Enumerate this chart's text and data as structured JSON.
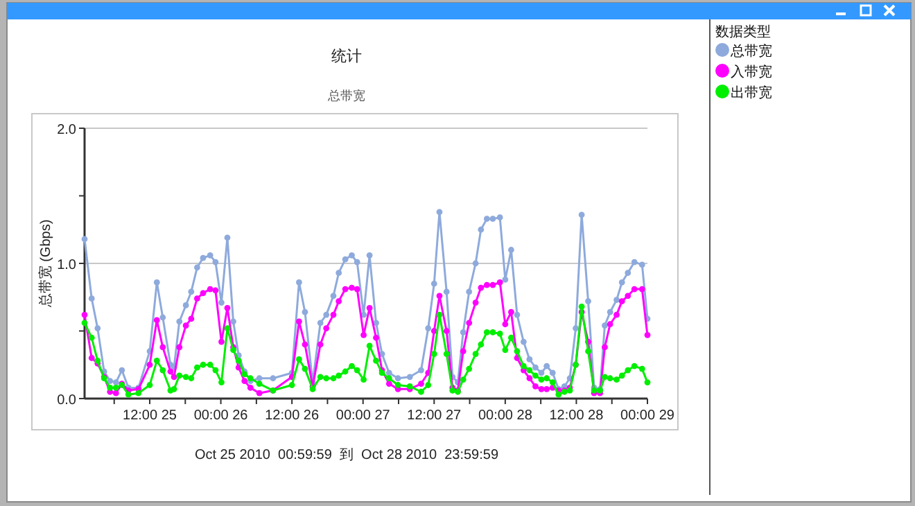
{
  "chart_data": {
    "type": "line",
    "title": "统计",
    "subtitle": "总带宽",
    "ylabel": "总带宽 (Gbps)",
    "xlabel": "Oct 25 2010  00:59:59  到  Oct 28 2010  23:59:59",
    "legend_title": "数据类型",
    "legend": "right",
    "marker": "circle",
    "grid": "y",
    "x": [
      "2010-10-25T01:00",
      "2010-10-25T02:12",
      "2010-10-25T03:12",
      "2010-10-25T04:18",
      "2010-10-25T05:18",
      "2010-10-25T06:18",
      "2010-10-25T07:18",
      "2010-10-25T08:24",
      "2010-10-25T10:06",
      "2010-10-25T12:00",
      "2010-10-25T13:12",
      "2010-10-25T14:12",
      "2010-10-25T15:30",
      "2010-10-25T16:06",
      "2010-10-25T17:00",
      "2010-10-25T18:06",
      "2010-10-25T19:00",
      "2010-10-25T20:00",
      "2010-10-25T21:00",
      "2010-10-25T22:12",
      "2010-10-25T23:06",
      "2010-10-26T00:06",
      "2010-10-26T01:06",
      "2010-10-26T02:06",
      "2010-10-26T03:00",
      "2010-10-26T04:00",
      "2010-10-26T05:00",
      "2010-10-26T06:30",
      "2010-10-26T08:48",
      "2010-10-26T12:00",
      "2010-10-26T13:12",
      "2010-10-26T14:12",
      "2010-10-26T15:30",
      "2010-10-26T16:48",
      "2010-10-26T17:48",
      "2010-10-26T19:00",
      "2010-10-26T19:54",
      "2010-10-26T21:00",
      "2010-10-26T22:06",
      "2010-10-26T23:00",
      "2010-10-27T00:06",
      "2010-10-27T01:06",
      "2010-10-27T02:12",
      "2010-10-27T03:12",
      "2010-10-27T04:24",
      "2010-10-27T05:54",
      "2010-10-27T07:54",
      "2010-10-27T09:48",
      "2010-10-27T11:00",
      "2010-10-27T12:00",
      "2010-10-27T12:54",
      "2010-10-27T14:06",
      "2010-10-27T15:06",
      "2010-10-27T16:00",
      "2010-10-27T16:54",
      "2010-10-27T17:54",
      "2010-10-27T19:00",
      "2010-10-27T19:54",
      "2010-10-27T20:54",
      "2010-10-27T21:54",
      "2010-10-27T23:06",
      "2010-10-28T00:00",
      "2010-10-28T01:00",
      "2010-10-28T02:00",
      "2010-10-28T03:06",
      "2010-10-28T04:06",
      "2010-10-28T05:06",
      "2010-10-28T06:06",
      "2010-10-28T07:00",
      "2010-10-28T08:00",
      "2010-10-28T09:00",
      "2010-10-28T10:00",
      "2010-10-28T10:54",
      "2010-10-28T11:54",
      "2010-10-28T12:54",
      "2010-10-28T14:00",
      "2010-10-28T15:00",
      "2010-10-28T16:00",
      "2010-10-28T16:48",
      "2010-10-28T17:42",
      "2010-10-28T18:48",
      "2010-10-28T19:42",
      "2010-10-28T20:42",
      "2010-10-28T21:48",
      "2010-10-28T23:06",
      "2010-10-29T00:00"
    ],
    "series": [
      {
        "name": "总带宽",
        "color": "#8eaadc",
        "values": [
          1.18,
          0.74,
          0.52,
          0.2,
          0.13,
          0.12,
          0.21,
          0.08,
          0.08,
          0.35,
          0.86,
          0.6,
          0.25,
          0.23,
          0.57,
          0.69,
          0.79,
          0.97,
          1.04,
          1.06,
          1.01,
          0.71,
          1.19,
          0.57,
          0.32,
          0.2,
          0.13,
          0.15,
          0.15,
          0.19,
          0.86,
          0.64,
          0.12,
          0.56,
          0.62,
          0.76,
          0.93,
          1.03,
          1.06,
          1.01,
          0.62,
          1.06,
          0.56,
          0.33,
          0.19,
          0.15,
          0.16,
          0.21,
          0.52,
          0.85,
          1.38,
          0.79,
          0.16,
          0.12,
          0.49,
          0.79,
          1.0,
          1.25,
          1.33,
          1.33,
          1.34,
          0.88,
          1.1,
          0.62,
          0.42,
          0.29,
          0.23,
          0.19,
          0.24,
          0.19,
          0.07,
          0.09,
          0.15,
          0.52,
          1.36,
          0.72,
          0.08,
          0.07,
          0.54,
          0.64,
          0.73,
          0.86,
          0.93,
          1.01,
          0.99,
          0.59
        ]
      },
      {
        "name": "入带宽",
        "color": "#ff00ff",
        "values": [
          0.62,
          0.3,
          0.26,
          0.16,
          0.05,
          0.04,
          0.11,
          0.06,
          0.07,
          0.25,
          0.58,
          0.38,
          0.2,
          0.16,
          0.38,
          0.54,
          0.59,
          0.74,
          0.78,
          0.81,
          0.8,
          0.42,
          0.67,
          0.38,
          0.23,
          0.13,
          0.08,
          0.04,
          0.06,
          0.16,
          0.57,
          0.4,
          0.09,
          0.4,
          0.52,
          0.62,
          0.72,
          0.81,
          0.82,
          0.81,
          0.47,
          0.67,
          0.45,
          0.21,
          0.11,
          0.07,
          0.07,
          0.11,
          0.19,
          0.5,
          0.76,
          0.5,
          0.08,
          0.06,
          0.35,
          0.56,
          0.71,
          0.82,
          0.84,
          0.84,
          0.86,
          0.55,
          0.64,
          0.3,
          0.21,
          0.15,
          0.09,
          0.07,
          0.07,
          0.08,
          0.06,
          0.06,
          0.08,
          0.25,
          0.64,
          0.42,
          0.04,
          0.04,
          0.38,
          0.55,
          0.62,
          0.72,
          0.76,
          0.81,
          0.81,
          0.47
        ]
      },
      {
        "name": "出带宽",
        "color": "#00ee00",
        "values": [
          0.56,
          0.45,
          0.28,
          0.15,
          0.08,
          0.08,
          0.1,
          0.03,
          0.04,
          0.1,
          0.28,
          0.21,
          0.06,
          0.07,
          0.17,
          0.16,
          0.15,
          0.23,
          0.25,
          0.25,
          0.21,
          0.12,
          0.52,
          0.36,
          0.28,
          0.18,
          0.15,
          0.11,
          0.06,
          0.1,
          0.29,
          0.22,
          0.07,
          0.16,
          0.15,
          0.15,
          0.17,
          0.2,
          0.24,
          0.21,
          0.14,
          0.39,
          0.28,
          0.19,
          0.15,
          0.1,
          0.09,
          0.05,
          0.1,
          0.33,
          0.62,
          0.33,
          0.06,
          0.05,
          0.14,
          0.22,
          0.33,
          0.4,
          0.49,
          0.49,
          0.48,
          0.36,
          0.45,
          0.35,
          0.24,
          0.21,
          0.17,
          0.14,
          0.15,
          0.12,
          0.03,
          0.05,
          0.06,
          0.25,
          0.68,
          0.35,
          0.06,
          0.06,
          0.16,
          0.15,
          0.14,
          0.17,
          0.21,
          0.24,
          0.22,
          0.12
        ]
      }
    ],
    "xlim": [
      "2010-10-25T01:00",
      "2010-10-29T00:00"
    ],
    "xticks": [
      {
        "value": "2010-10-25T06:00",
        "label": null
      },
      {
        "value": "2010-10-25T12:00",
        "label": "12:00 25"
      },
      {
        "value": "2010-10-25T18:00",
        "label": null
      },
      {
        "value": "2010-10-26T00:00",
        "label": "00:00 26"
      },
      {
        "value": "2010-10-26T06:00",
        "label": null
      },
      {
        "value": "2010-10-26T12:00",
        "label": "12:00 26"
      },
      {
        "value": "2010-10-26T18:00",
        "label": null
      },
      {
        "value": "2010-10-27T00:00",
        "label": "00:00 27"
      },
      {
        "value": "2010-10-27T06:00",
        "label": null
      },
      {
        "value": "2010-10-27T12:00",
        "label": "12:00 27"
      },
      {
        "value": "2010-10-27T18:00",
        "label": null
      },
      {
        "value": "2010-10-28T00:00",
        "label": "00:00 28"
      },
      {
        "value": "2010-10-28T06:00",
        "label": null
      },
      {
        "value": "2010-10-28T12:00",
        "label": "12:00 28"
      },
      {
        "value": "2010-10-28T18:00",
        "label": null
      },
      {
        "value": "2010-10-29T00:00",
        "label": "00:00 29"
      }
    ],
    "ylim": [
      0,
      2
    ],
    "yticks": [
      {
        "value": 0,
        "label": "0.0"
      },
      {
        "value": 0.5,
        "label": null
      },
      {
        "value": 1,
        "label": "1.0"
      },
      {
        "value": 1.5,
        "label": null
      },
      {
        "value": 2,
        "label": "2.0"
      }
    ]
  }
}
